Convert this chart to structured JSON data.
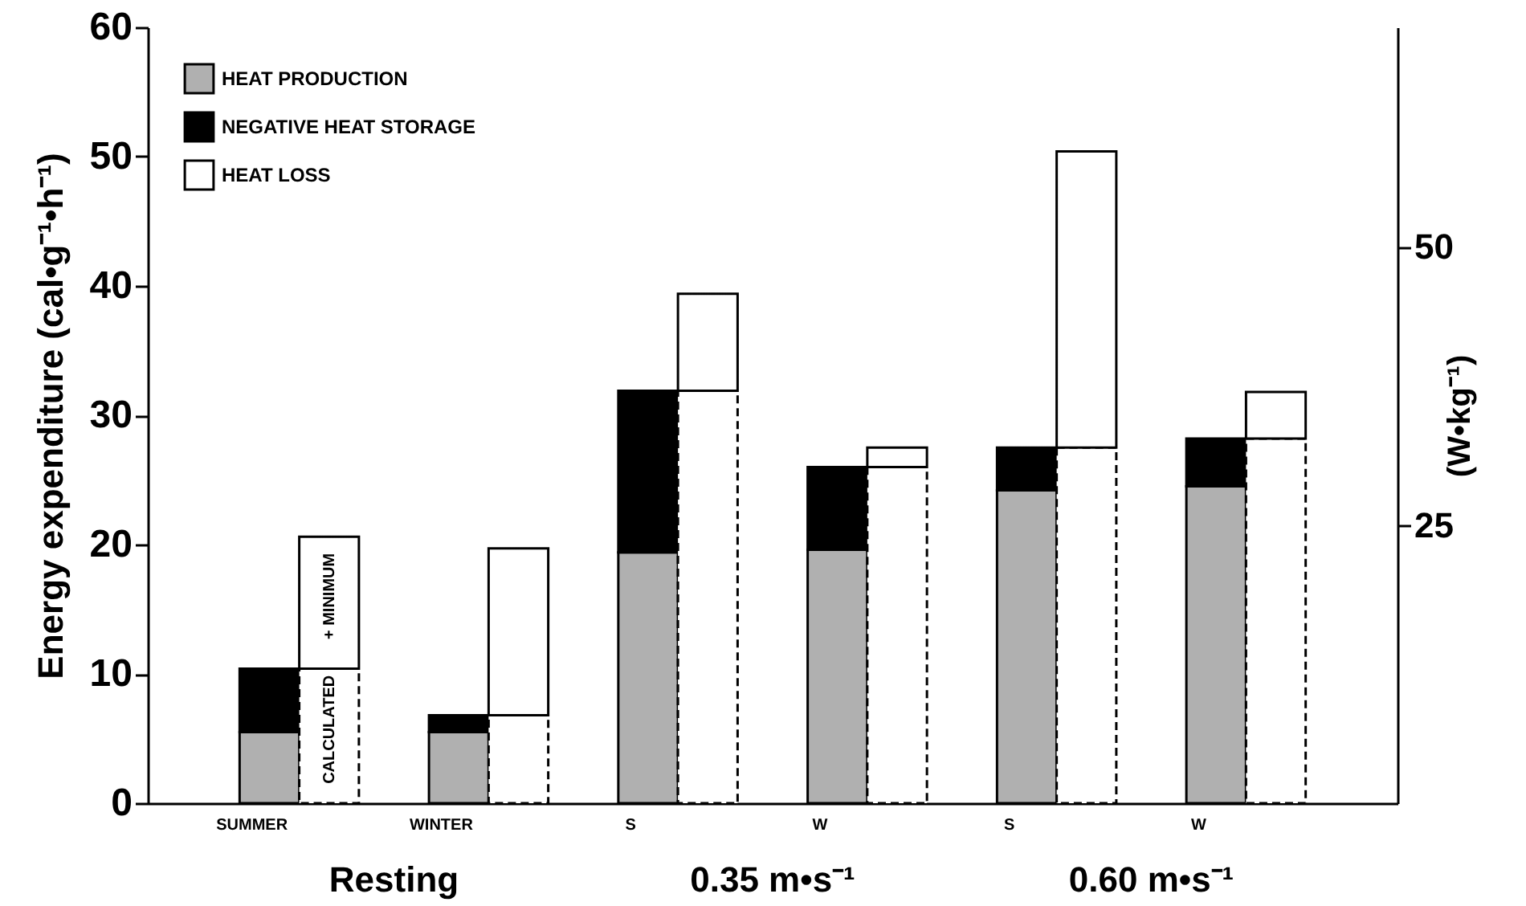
{
  "chart_data": {
    "type": "bar",
    "stacked": true,
    "ylabel": "Energy expenditure (cal•g⁻¹•h⁻¹)",
    "y2label": "(W•kg⁻¹)",
    "categories": [
      "SUMMER",
      null,
      "WINTER",
      null,
      "S",
      null,
      "W",
      null,
      "S",
      null,
      "W",
      null
    ],
    "series": [
      {
        "name": "HEAT PRODUCTION",
        "color": "#b0b0b0",
        "values": [
          5.5,
          null,
          5.5,
          null,
          19.4,
          null,
          19.6,
          null,
          24.2,
          null,
          24.5,
          null
        ]
      },
      {
        "name": "NEGATIVE HEAT STORAGE",
        "color": "#000000",
        "values": [
          4.9,
          null,
          1.3,
          null,
          12.5,
          null,
          6.4,
          null,
          3.3,
          null,
          3.7,
          null
        ]
      },
      {
        "name": "HEAT LOSS",
        "color": "#ffffff",
        "values": [
          null,
          10.4,
          null,
          6.8,
          null,
          31.9,
          null,
          26.0,
          null,
          27.5,
          null,
          28.2
        ]
      },
      {
        "color": "#ffffff",
        "values": [
          null,
          10.2,
          null,
          12.9,
          null,
          7.5,
          null,
          1.5,
          null,
          22.9,
          null,
          3.6
        ]
      }
    ],
    "ylim": [
      0,
      60
    ],
    "yticks": [
      0,
      10,
      20,
      30,
      40,
      50,
      60
    ],
    "y2lim": [
      0,
      69.7
    ],
    "y2ticks": [
      25,
      50
    ],
    "annotations": [
      "CALCULATED",
      "+ MINIMUM",
      "Resting",
      "0.35 m•s⁻¹",
      "0.60 m•s⁻¹"
    ],
    "legend": "top left",
    "grid": false
  }
}
